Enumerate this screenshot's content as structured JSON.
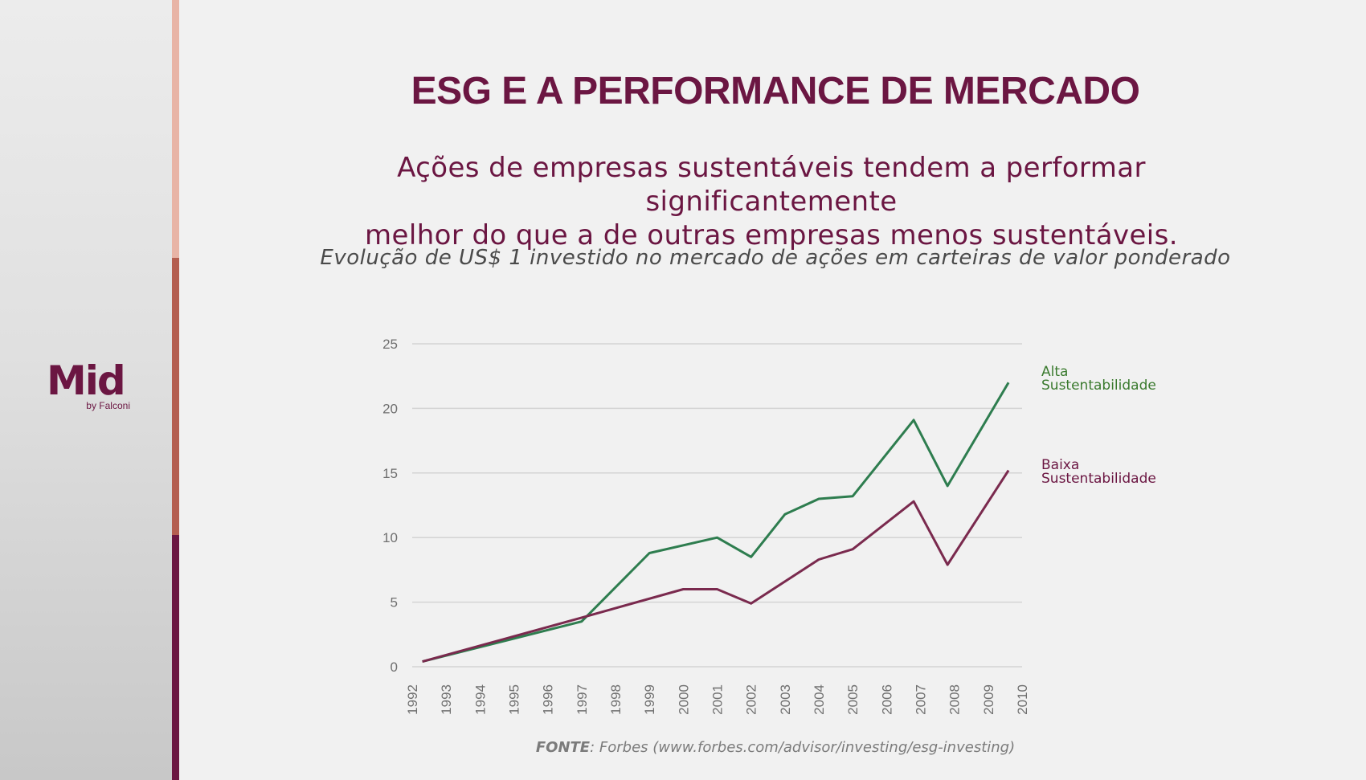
{
  "brand": {
    "logo_text": "Mid",
    "logo_sub": "by Falconi"
  },
  "colors": {
    "primary": "#6b1642",
    "stripe_top": "#e8b4a6",
    "stripe_middle": "#b45e50",
    "stripe_bottom": "#6b1642",
    "series_high": "#2e7d4f",
    "series_low": "#7a2a4e",
    "label_high": "#3a7a2e",
    "gridline": "#d4d4d4",
    "tick_text": "#707070"
  },
  "slide": {
    "title": "ESG E A PERFORMANCE DE MERCADO",
    "subtitle_line1": "Ações de empresas sustentáveis tendem a performar significantemente",
    "subtitle_line2": "melhor do que a de outras empresas menos sustentáveis.",
    "chart_caption": "Evolução de US$ 1 investido no mercado de ações em carteiras de valor ponderado",
    "source_label": "FONTE",
    "source_text": ": Forbes (www.forbes.com/advisor/investing/esg-investing)"
  },
  "chart_data": {
    "type": "line",
    "title": "Evolução de US$ 1 investido no mercado de ações em carteiras de valor ponderado",
    "xlabel": "",
    "ylabel": "",
    "x_ticks": [
      "1992",
      "1993",
      "1994",
      "1995",
      "1996",
      "1997",
      "1998",
      "1999",
      "2000",
      "2001",
      "2002",
      "2003",
      "2004",
      "2005",
      "2006",
      "2007",
      "2008",
      "2009",
      "2010"
    ],
    "xlim": [
      1992,
      2010
    ],
    "ylim": [
      0,
      25
    ],
    "y_ticks": [
      0,
      5,
      10,
      15,
      20,
      25
    ],
    "grid": true,
    "legend": "right",
    "series": [
      {
        "name_lines": [
          "Alta",
          "Sustentabilidade"
        ],
        "color": "#2e7d4f",
        "label_color": "#3a7a2e",
        "x": [
          1992.3,
          1997,
          1999,
          2001,
          2002,
          2003,
          2004,
          2005,
          2006.8,
          2007.8,
          2009.6
        ],
        "y": [
          0.4,
          3.5,
          8.8,
          10.0,
          8.5,
          11.8,
          13.0,
          13.2,
          19.1,
          14.0,
          22.0
        ]
      },
      {
        "name_lines": [
          "Baixa",
          "Sustentabilidade"
        ],
        "color": "#7a2a4e",
        "label_color": "#6b1642",
        "x": [
          1992.3,
          1997,
          2000,
          2001,
          2002,
          2004,
          2005,
          2006.8,
          2007.8,
          2009.6
        ],
        "y": [
          0.4,
          3.8,
          6.0,
          6.0,
          4.9,
          8.3,
          9.1,
          12.8,
          7.9,
          15.2
        ]
      }
    ]
  }
}
